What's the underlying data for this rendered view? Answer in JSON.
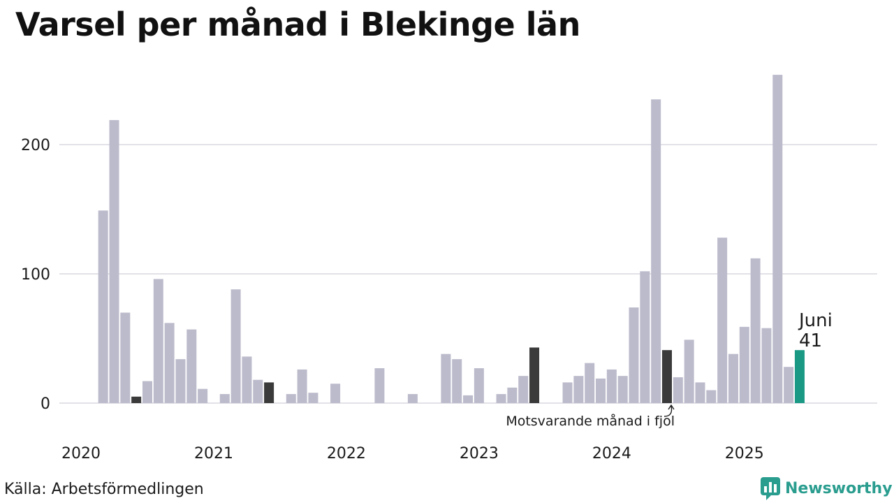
{
  "title": "Varsel per månad i Blekinge län",
  "source": "Källa: Arbetsförmedlingen",
  "brand": {
    "name": "Newsworthy",
    "icon": "bar-chart-speech-bubble-icon"
  },
  "colors": {
    "default": "#bcbbcc",
    "previous_year": "#3a3a3a",
    "current": "#1a9985",
    "grid": "#e2e2e8",
    "brand": "#2a9d8f"
  },
  "chart_data": {
    "type": "bar",
    "title": "Varsel per månad i Blekinge län",
    "xlabel": "",
    "ylabel": "",
    "ylim": [
      0,
      255
    ],
    "yticks": [
      0,
      100,
      200
    ],
    "xticks": [
      {
        "label": "2020",
        "month": "2020-01"
      },
      {
        "label": "2021",
        "month": "2021-01"
      },
      {
        "label": "2022",
        "month": "2022-01"
      },
      {
        "label": "2023",
        "month": "2023-01"
      },
      {
        "label": "2024",
        "month": "2024-01"
      },
      {
        "label": "2025",
        "month": "2025-01"
      }
    ],
    "grid": true,
    "months": [
      "2020-01",
      "2020-02",
      "2020-03",
      "2020-04",
      "2020-05",
      "2020-06",
      "2020-07",
      "2020-08",
      "2020-09",
      "2020-10",
      "2020-11",
      "2020-12",
      "2021-01",
      "2021-02",
      "2021-03",
      "2021-04",
      "2021-05",
      "2021-06",
      "2021-07",
      "2021-08",
      "2021-09",
      "2021-10",
      "2021-11",
      "2021-12",
      "2022-01",
      "2022-02",
      "2022-03",
      "2022-04",
      "2022-05",
      "2022-06",
      "2022-07",
      "2022-08",
      "2022-09",
      "2022-10",
      "2022-11",
      "2022-12",
      "2023-01",
      "2023-02",
      "2023-03",
      "2023-04",
      "2023-05",
      "2023-06",
      "2023-07",
      "2023-08",
      "2023-09",
      "2023-10",
      "2023-11",
      "2023-12",
      "2024-01",
      "2024-02",
      "2024-03",
      "2024-04",
      "2024-05",
      "2024-06",
      "2024-07",
      "2024-08",
      "2024-09",
      "2024-10",
      "2024-11",
      "2024-12",
      "2025-01",
      "2025-02",
      "2025-03",
      "2025-04",
      "2025-05",
      "2025-06"
    ],
    "values": [
      0,
      0,
      149,
      219,
      70,
      5,
      17,
      96,
      62,
      34,
      57,
      11,
      0,
      7,
      88,
      36,
      18,
      16,
      0,
      7,
      26,
      8,
      0,
      15,
      0,
      0,
      0,
      27,
      0,
      0,
      7,
      0,
      0,
      38,
      34,
      6,
      27,
      0,
      7,
      12,
      21,
      43,
      0,
      0,
      16,
      21,
      31,
      19,
      26,
      21,
      74,
      102,
      235,
      41,
      20,
      49,
      16,
      10,
      128,
      38,
      59,
      112,
      58,
      254,
      28,
      41
    ],
    "highlight_previous_year": [
      "2020-06",
      "2021-06",
      "2022-06",
      "2023-06",
      "2024-06"
    ],
    "highlight_current": "2025-06",
    "annotations": {
      "current_month": "Juni",
      "current_value": "41",
      "previous_year_note": "Motsvarande månad i fjol"
    }
  }
}
